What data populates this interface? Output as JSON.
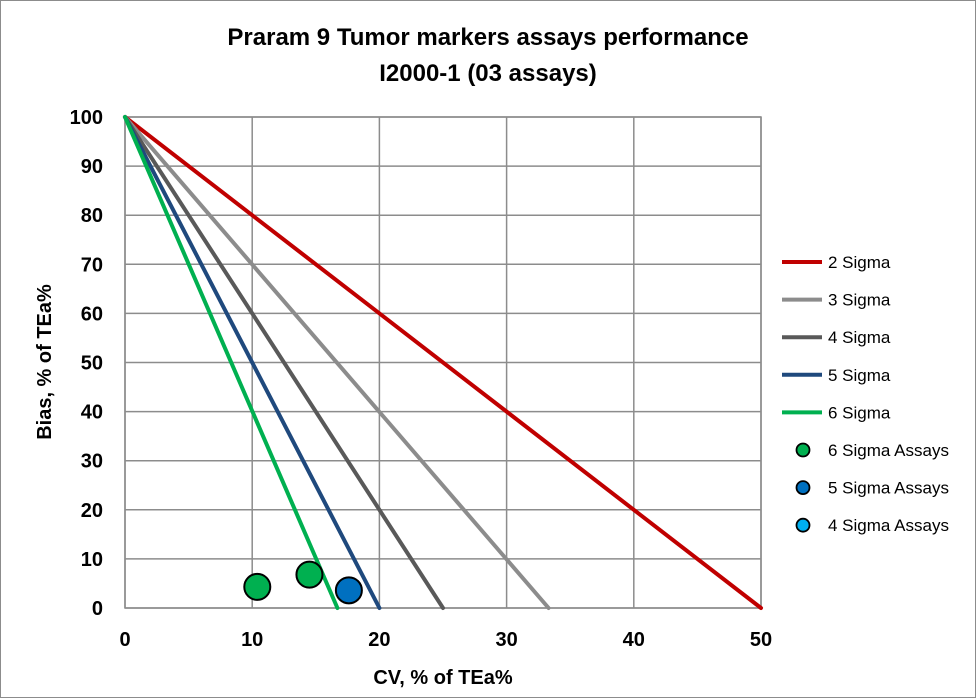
{
  "chart_data": {
    "type": "scatter",
    "title_line1": "Praram  9 Tumor markers assays performance",
    "title_line2": "I2000-1 (03 assays)",
    "xlabel": "CV, % of TEa%",
    "ylabel": "Bias, % of TEa%",
    "xlim": [
      0,
      50
    ],
    "ylim": [
      0,
      100
    ],
    "xticks": [
      0,
      10,
      20,
      30,
      40,
      50
    ],
    "yticks": [
      0,
      10,
      20,
      30,
      40,
      50,
      60,
      70,
      80,
      90,
      100
    ],
    "grid": true,
    "legend_position": "right",
    "sigma_lines": [
      {
        "name": "2 Sigma",
        "sigma": 2,
        "color": "#c00000",
        "x": [
          0,
          50
        ],
        "y": [
          100,
          0
        ]
      },
      {
        "name": "3 Sigma",
        "sigma": 3,
        "color": "#8c8c8c",
        "x": [
          0,
          33.3
        ],
        "y": [
          100,
          0
        ]
      },
      {
        "name": "4 Sigma",
        "sigma": 4,
        "color": "#595959",
        "x": [
          0,
          25
        ],
        "y": [
          100,
          0
        ]
      },
      {
        "name": "5 Sigma",
        "sigma": 5,
        "color": "#1f497d",
        "x": [
          0,
          20
        ],
        "y": [
          100,
          0
        ]
      },
      {
        "name": "6 Sigma",
        "sigma": 6,
        "color": "#00b050",
        "x": [
          0,
          16.7
        ],
        "y": [
          100,
          0
        ]
      }
    ],
    "point_series": [
      {
        "name": "6 Sigma Assays",
        "color": "#00b050",
        "points": [
          {
            "x": 10.4,
            "y": 4.3
          },
          {
            "x": 14.5,
            "y": 6.8
          }
        ]
      },
      {
        "name": "5 Sigma Assays",
        "color": "#0070c0",
        "points": [
          {
            "x": 17.6,
            "y": 3.6
          }
        ]
      },
      {
        "name": "4 Sigma Assays",
        "color": "#00b0f0",
        "points": []
      }
    ]
  }
}
